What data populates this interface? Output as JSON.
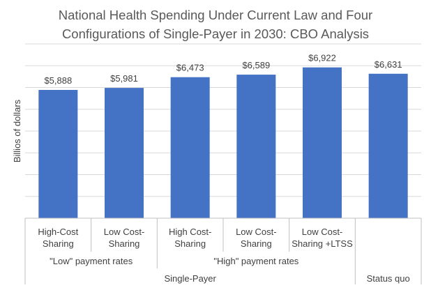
{
  "chart_data": {
    "type": "bar",
    "title_lines": [
      "National Health Spending Under Current Law and Four",
      "Configurations of Single-Payer in 2030: CBO Analysis"
    ],
    "ylabel": "Billios of dollars",
    "ylim": [
      0,
      8000
    ],
    "grid": true,
    "bar_color": "#4472C4",
    "categories": [
      [
        "High-Cost",
        "Sharing"
      ],
      [
        "Low Cost-",
        "Sharing"
      ],
      [
        "High Cost-",
        "Sharing"
      ],
      [
        "Low Cost-",
        "Sharing"
      ],
      [
        "Low Cost-",
        "Sharing +LTSS"
      ],
      []
    ],
    "values": [
      5888,
      5981,
      6473,
      6589,
      6922,
      6631
    ],
    "data_labels": [
      "$5,888",
      "$5,981",
      "$6,473",
      "$6,589",
      "$6,922",
      "$6,631"
    ],
    "group_level_1": [
      {
        "label": "\"Low\" payment rates",
        "span": [
          0,
          1
        ]
      },
      {
        "label": "\"High\" payment rates",
        "span": [
          2,
          4
        ]
      },
      {
        "label": "",
        "span": [
          5,
          5
        ]
      }
    ],
    "group_level_2": [
      {
        "label": "Single-Payer",
        "span": [
          0,
          4
        ]
      },
      {
        "label": "Status quo",
        "span": [
          5,
          5
        ]
      }
    ]
  }
}
